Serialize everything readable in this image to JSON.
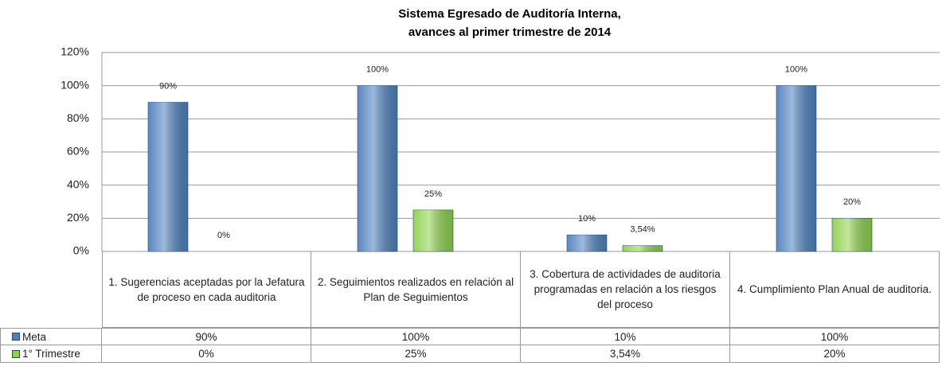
{
  "chart_data": {
    "type": "bar",
    "title": [
      "Sistema Egresado de Auditoría Interna,",
      "avances al primer trimestre de 2014"
    ],
    "categories": [
      "1. Sugerencias aceptadas por la Jefatura de proceso en cada auditoria",
      "2. Seguimientos realizados en relación al Plan de Seguimientos",
      "3. Cobertura de actividades de auditoria programadas en relación a los riesgos del proceso",
      "4. Cumplimiento Plan Anual de auditoria."
    ],
    "series": [
      {
        "name": "Meta",
        "color": "#4f81bd",
        "values": [
          90,
          100,
          10,
          100
        ],
        "value_labels": [
          "90%",
          "100%",
          "10%",
          "100%"
        ]
      },
      {
        "name": "1° Trimestre",
        "color": "#8fd14f",
        "values": [
          0,
          25,
          3.54,
          20
        ],
        "value_labels": [
          "0%",
          "25%",
          "3,54%",
          "20%"
        ]
      }
    ],
    "ylim": [
      0,
      120
    ],
    "yticks": [
      {
        "value": 0,
        "label": "0%"
      },
      {
        "value": 20,
        "label": "20%"
      },
      {
        "value": 40,
        "label": "40%"
      },
      {
        "value": 60,
        "label": "60%"
      },
      {
        "value": 80,
        "label": "80%"
      },
      {
        "value": 100,
        "label": "100%"
      },
      {
        "value": 120,
        "label": "120%"
      }
    ],
    "grid": true
  }
}
